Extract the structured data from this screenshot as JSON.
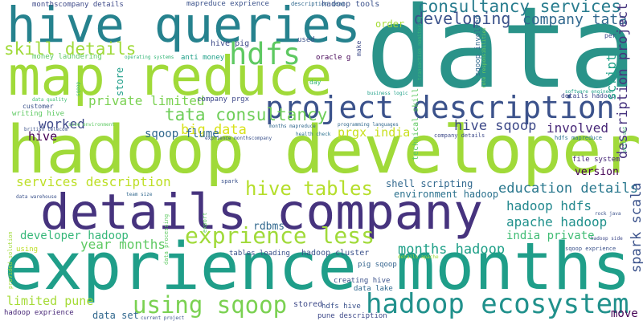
{
  "words": [
    {
      "text": "data"
    },
    {
      "text": "hive queries"
    },
    {
      "text": "map reduce"
    },
    {
      "text": "hadoop developer"
    },
    {
      "text": "details company"
    },
    {
      "text": "exprience months"
    },
    {
      "text": "project description"
    },
    {
      "text": "skill details"
    },
    {
      "text": "hdfs"
    },
    {
      "text": "consultancy services"
    },
    {
      "text": "developing"
    },
    {
      "text": "company tata"
    },
    {
      "text": "tata consultancy"
    },
    {
      "text": "hive tables"
    },
    {
      "text": "exprience less"
    },
    {
      "text": "using sqoop"
    },
    {
      "text": "hadoop ecosystem"
    },
    {
      "text": "big data"
    },
    {
      "text": "prgx india"
    },
    {
      "text": "hive sqoop"
    },
    {
      "text": "involved"
    },
    {
      "text": "private limited"
    },
    {
      "text": "worked"
    },
    {
      "text": "hive"
    },
    {
      "text": "sqoop flume"
    },
    {
      "text": "services description"
    },
    {
      "text": "year months"
    },
    {
      "text": "developer hadoop"
    },
    {
      "text": "limited pune"
    },
    {
      "text": "data set"
    },
    {
      "text": "education details"
    },
    {
      "text": "hadoop hdfs"
    },
    {
      "text": "apache hadoop"
    },
    {
      "text": "india private"
    },
    {
      "text": "months hadoop"
    },
    {
      "text": "shell scripting"
    },
    {
      "text": "environment hadoop"
    },
    {
      "text": "rdbms"
    },
    {
      "text": "tables loading"
    },
    {
      "text": "hadoop cluster"
    },
    {
      "text": "pig sqoop"
    },
    {
      "text": "creating hive"
    },
    {
      "text": "data lake"
    },
    {
      "text": "stored"
    },
    {
      "text": "hdfs hive"
    },
    {
      "text": "pune description"
    },
    {
      "text": "move"
    },
    {
      "text": "file system"
    },
    {
      "text": "version"
    },
    {
      "text": "hadoop exprience"
    },
    {
      "text": "current project"
    },
    {
      "text": "using"
    },
    {
      "text": "monthscompany details"
    },
    {
      "text": "mapreduce exprience"
    },
    {
      "text": "description team"
    },
    {
      "text": "hadoop tools"
    },
    {
      "text": "hive pig"
    },
    {
      "text": "used"
    },
    {
      "text": "oracle g"
    },
    {
      "text": "anti money"
    },
    {
      "text": "money laundering"
    },
    {
      "text": "operating systems"
    },
    {
      "text": "order"
    },
    {
      "text": "day"
    },
    {
      "text": "business logic"
    },
    {
      "text": "company prgx"
    },
    {
      "text": "customer"
    },
    {
      "text": "writing hive"
    },
    {
      "text": "data quality"
    },
    {
      "text": "british telecom"
    },
    {
      "text": "size environment"
    },
    {
      "text": "months mapreduce"
    },
    {
      "text": "programming languages"
    },
    {
      "text": "health check"
    },
    {
      "text": "company details"
    },
    {
      "text": "exprience monthscompany"
    },
    {
      "text": "hdfs mapreduce"
    },
    {
      "text": "details hadoop"
    },
    {
      "text": "software engineer"
    },
    {
      "text": "per"
    },
    {
      "text": "spark"
    },
    {
      "text": "team size"
    },
    {
      "text": "data warehouse"
    },
    {
      "text": "details apache"
    },
    {
      "text": "hadoop side"
    },
    {
      "text": "sqoop exprience"
    },
    {
      "text": "rock java"
    },
    {
      "text": "store"
    },
    {
      "text": "script"
    },
    {
      "text": "description project"
    },
    {
      "text": "spark scala"
    },
    {
      "text": "technical skill"
    },
    {
      "text": "sqoop involved"
    },
    {
      "text": "make"
    },
    {
      "text": "transaction monitoring"
    },
    {
      "text": "role responsibilities"
    },
    {
      "text": "skill set"
    },
    {
      "text": "provided solution"
    },
    {
      "text": "data processing"
    },
    {
      "text": "export"
    },
    {
      "text": "sqoop"
    }
  ]
}
